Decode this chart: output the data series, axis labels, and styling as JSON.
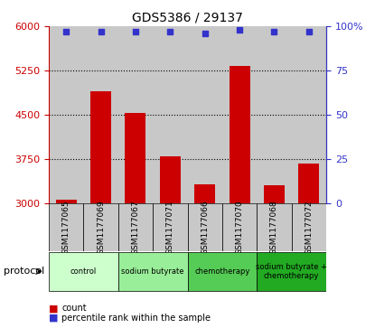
{
  "title": "GDS5386 / 29137",
  "samples": [
    "GSM1177065",
    "GSM1177069",
    "GSM1177067",
    "GSM1177071",
    "GSM1177066",
    "GSM1177070",
    "GSM1177068",
    "GSM1177072"
  ],
  "counts": [
    3060,
    4900,
    4530,
    3800,
    3320,
    5320,
    3300,
    3680
  ],
  "percentiles": [
    97,
    97,
    97,
    97,
    96,
    98,
    97,
    97
  ],
  "ylim_left": [
    3000,
    6000
  ],
  "ylim_right": [
    0,
    100
  ],
  "yticks_left": [
    3000,
    3750,
    4500,
    5250,
    6000
  ],
  "yticks_right": [
    0,
    25,
    50,
    75,
    100
  ],
  "bar_color": "#cc0000",
  "dot_color": "#3333cc",
  "groups": [
    {
      "label": "control",
      "samples": [
        "GSM1177065",
        "GSM1177069"
      ],
      "color": "#ccffcc"
    },
    {
      "label": "sodium butyrate",
      "samples": [
        "GSM1177067",
        "GSM1177071"
      ],
      "color": "#99ee99"
    },
    {
      "label": "chemotherapy",
      "samples": [
        "GSM1177066",
        "GSM1177070"
      ],
      "color": "#55cc55"
    },
    {
      "label": "sodium butyrate +\nchemotherapy",
      "samples": [
        "GSM1177068",
        "GSM1177072"
      ],
      "color": "#22aa22"
    }
  ],
  "left_axis_color": "#cc0000",
  "right_axis_color": "#3333cc",
  "sample_bg_color": "#c8c8c8",
  "legend_count_color": "#cc0000",
  "legend_pct_color": "#3333cc",
  "dotted_lines": [
    3750,
    4500,
    5250
  ],
  "bar_width": 0.6
}
